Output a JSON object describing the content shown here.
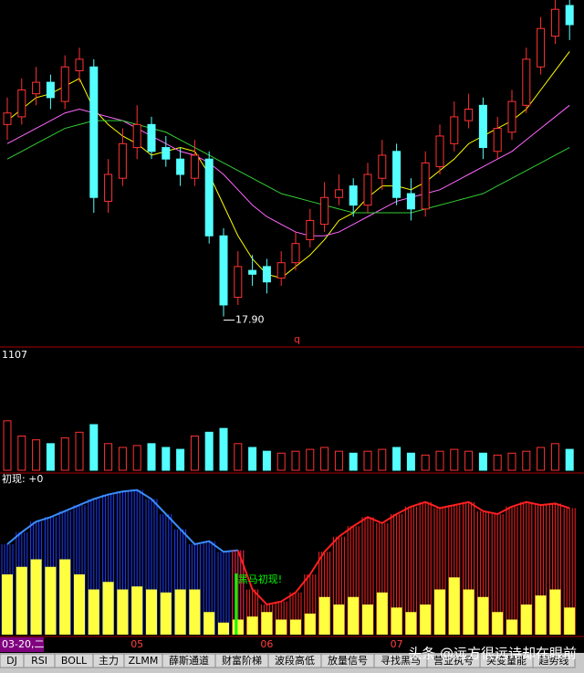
{
  "chart_data": {
    "type": "candlestick",
    "open": [
      22.9,
      23.1,
      23.7,
      24.0,
      23.5,
      24.3,
      24.4,
      20.9,
      21.5,
      22.3,
      22.9,
      22.3,
      22.0,
      21.5,
      22.0,
      20.0,
      18.4,
      19.1,
      19.2,
      18.9,
      19.3,
      19.9,
      20.3,
      21.0,
      21.3,
      20.8,
      21.5,
      22.2,
      21.1,
      20.7,
      21.8,
      22.4,
      23.0,
      23.4,
      22.2,
      22.7,
      23.4,
      24.4,
      25.2,
      26.0
    ],
    "close": [
      23.2,
      23.8,
      24.0,
      23.6,
      24.4,
      24.6,
      21.0,
      21.6,
      22.4,
      22.9,
      22.2,
      22.0,
      21.6,
      22.1,
      20.0,
      18.2,
      19.2,
      19.0,
      18.8,
      19.3,
      19.8,
      20.4,
      21.0,
      21.2,
      20.8,
      21.6,
      22.1,
      21.0,
      20.7,
      21.9,
      22.6,
      23.1,
      23.3,
      22.3,
      22.8,
      23.5,
      24.6,
      25.4,
      25.9,
      25.5
    ],
    "high": [
      23.6,
      24.1,
      24.4,
      24.2,
      24.7,
      24.9,
      24.6,
      22.0,
      22.8,
      23.4,
      23.1,
      22.6,
      22.3,
      22.5,
      22.2,
      20.2,
      19.6,
      19.5,
      19.4,
      19.6,
      20.1,
      20.7,
      21.4,
      21.6,
      21.5,
      21.9,
      22.5,
      22.4,
      21.5,
      22.2,
      22.9,
      23.5,
      23.7,
      23.6,
      23.1,
      23.8,
      24.9,
      25.7,
      26.2,
      26.3
    ],
    "low": [
      22.5,
      22.9,
      23.4,
      23.3,
      23.3,
      24.0,
      20.6,
      20.6,
      21.3,
      22.0,
      22.0,
      21.8,
      21.3,
      21.3,
      19.8,
      17.9,
      18.2,
      18.7,
      18.5,
      18.7,
      19.1,
      19.7,
      20.1,
      20.8,
      20.5,
      20.6,
      21.2,
      20.8,
      20.4,
      20.5,
      21.6,
      22.2,
      22.8,
      22.0,
      22.0,
      22.5,
      23.2,
      24.2,
      25.0,
      25.1
    ],
    "up_color": "#ff3232",
    "down_color": "#54ffff",
    "ylim": [
      17.2,
      26.0
    ],
    "ma": [
      {
        "color": "#ffff00",
        "values": [
          23.0,
          23.3,
          23.6,
          23.7,
          23.9,
          24.1,
          23.3,
          22.9,
          22.6,
          22.4,
          22.1,
          22.2,
          22.3,
          22.2,
          21.6,
          20.8,
          20.0,
          19.4,
          19.0,
          18.9,
          19.2,
          19.5,
          19.9,
          20.4,
          20.6,
          21.0,
          21.3,
          21.3,
          21.2,
          21.4,
          21.7,
          22.0,
          22.4,
          22.6,
          22.8,
          23.0,
          23.3,
          23.8,
          24.3,
          24.8
        ]
      },
      {
        "color": "#ff66ff",
        "values": [
          22.4,
          22.6,
          22.8,
          23.0,
          23.2,
          23.3,
          23.2,
          23.1,
          23.0,
          22.8,
          22.6,
          22.4,
          22.2,
          22.1,
          21.9,
          21.6,
          21.2,
          20.8,
          20.5,
          20.3,
          20.1,
          20.0,
          20.0,
          20.1,
          20.3,
          20.5,
          20.7,
          20.9,
          21.0,
          21.1,
          21.2,
          21.4,
          21.6,
          21.8,
          22.0,
          22.2,
          22.5,
          22.8,
          23.1,
          23.4
        ]
      },
      {
        "color": "#33cc33",
        "values": [
          22.0,
          22.2,
          22.4,
          22.6,
          22.8,
          22.9,
          23.0,
          23.0,
          23.0,
          22.9,
          22.8,
          22.7,
          22.5,
          22.3,
          22.1,
          21.9,
          21.7,
          21.5,
          21.3,
          21.1,
          21.0,
          20.9,
          20.8,
          20.7,
          20.6,
          20.6,
          20.6,
          20.6,
          20.6,
          20.7,
          20.8,
          20.9,
          21.0,
          21.1,
          21.3,
          21.5,
          21.7,
          21.9,
          22.1,
          22.3
        ]
      }
    ],
    "low_label": "17.90",
    "low_index": 15,
    "marker": "q",
    "volume": {
      "label": "1107",
      "ylim": [
        0,
        3000
      ],
      "values": [
        1300,
        900,
        800,
        700,
        850,
        1000,
        1200,
        700,
        600,
        650,
        700,
        600,
        550,
        900,
        1000,
        1100,
        700,
        600,
        500,
        450,
        500,
        550,
        600,
        500,
        450,
        500,
        550,
        600,
        450,
        400,
        500,
        550,
        500,
        450,
        400,
        450,
        500,
        600,
        700,
        550
      ]
    },
    "indicator": {
      "label": "初现: +0",
      "ylim": [
        0,
        100
      ],
      "blue_values": [
        60,
        68,
        75,
        78,
        82,
        86,
        90,
        93,
        95,
        96,
        90,
        80,
        70,
        60,
        62,
        55,
        56,
        null,
        null,
        null,
        null,
        null,
        null,
        null,
        null,
        null,
        null,
        null,
        null,
        null,
        null,
        null,
        null,
        null,
        null,
        null,
        null,
        null,
        null,
        null
      ],
      "red_values": [
        null,
        null,
        null,
        null,
        null,
        null,
        null,
        null,
        null,
        null,
        null,
        null,
        null,
        null,
        null,
        null,
        56,
        30,
        20,
        22,
        28,
        40,
        55,
        65,
        72,
        78,
        74,
        80,
        85,
        88,
        84,
        86,
        88,
        82,
        80,
        85,
        88,
        86,
        87,
        84
      ],
      "yellow_values": [
        40,
        45,
        50,
        45,
        50,
        40,
        30,
        35,
        30,
        32,
        30,
        28,
        30,
        30,
        15,
        8,
        10,
        12,
        15,
        10,
        10,
        14,
        25,
        20,
        25,
        20,
        28,
        18,
        15,
        20,
        30,
        38,
        30,
        25,
        15,
        10,
        20,
        26,
        30,
        18
      ],
      "signal_label": "黑马初现!",
      "signal_index": 16
    },
    "date_label": "03-20,二",
    "xticks": [
      {
        "value": 9,
        "label": "05"
      },
      {
        "value": 18,
        "label": "06"
      },
      {
        "value": 27,
        "label": "07"
      }
    ],
    "tabs": [
      "DJ",
      "RSI",
      "BOLL",
      "主力",
      "ZLMM",
      "薛斯通道",
      "财富阶梯",
      "波段高低",
      "放量信号",
      "寻找黑马",
      "营业执号",
      "突变量能",
      "趋势线"
    ],
    "watermark": "头条 @远方很远诗却在眼前"
  }
}
